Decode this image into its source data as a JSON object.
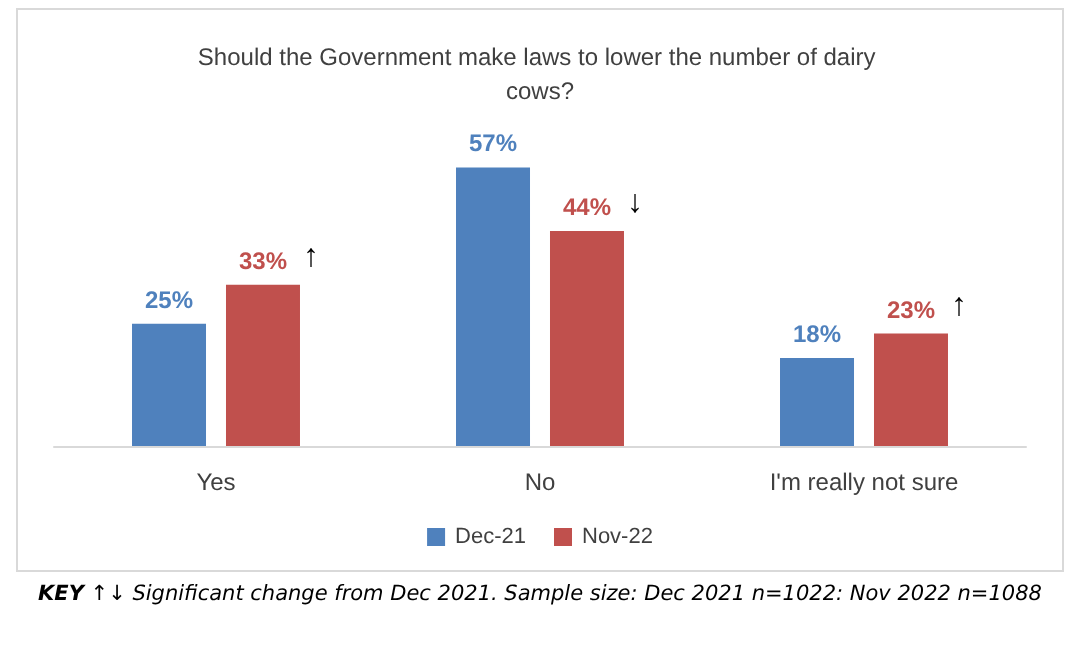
{
  "chart_data": {
    "type": "bar",
    "title": "Should the Government make laws to lower the number of dairy cows?",
    "categories": [
      "Yes",
      "No",
      "I'm really not sure"
    ],
    "series": [
      {
        "name": "Dec-21",
        "color": "#4f81bd",
        "values": [
          25,
          57,
          18
        ],
        "value_labels": [
          "25%",
          "57%",
          "18%"
        ]
      },
      {
        "name": "Nov-22",
        "color": "#c0504d",
        "values": [
          33,
          44,
          23
        ],
        "value_labels": [
          "33%",
          "44%",
          "23%"
        ]
      }
    ],
    "annotations": [
      {
        "text": "↑",
        "x": "Yes",
        "y": 33
      },
      {
        "text": "↓",
        "x": "No",
        "y": 44
      },
      {
        "text": "↑",
        "x": "I'm really not sure",
        "y": 23
      },
      "KEY ↑↓ Significant change from Dec 2021. Sample size: Dec 2021 n=1022: Nov 2022 n=1088"
    ],
    "legend": "bottom"
  }
}
